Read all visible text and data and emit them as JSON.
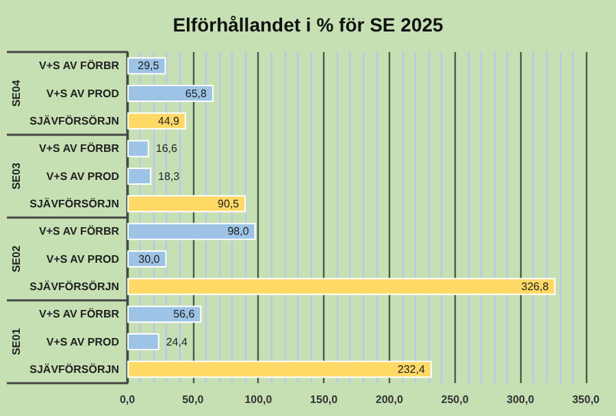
{
  "chart_data": {
    "type": "bar",
    "orientation": "horizontal",
    "title": "Elförhållandet i % för SE 2025",
    "categories": [
      "V+S AV FÖRBR",
      "V+S AV PROD",
      "SJÄVFÖRSÖRJN",
      "V+S AV FÖRBR",
      "V+S AV PROD",
      "SJÄVFÖRSÖRJN",
      "V+S AV FÖRBR",
      "V+S AV PROD",
      "SJÄVFÖRSÖRJN",
      "V+S AV FÖRBR",
      "V+S AV PROD",
      "SJÄVFÖRSÖRJN"
    ],
    "values": [
      29.5,
      65.8,
      44.9,
      16.6,
      18.3,
      90.5,
      98.0,
      30.0,
      326.8,
      56.6,
      24.4,
      232.4
    ],
    "value_labels": [
      "29,5",
      "65,8",
      "44,9",
      "16,6",
      "18,3",
      "90,5",
      "98,0",
      "30,0",
      "326,8",
      "56,6",
      "24,4",
      "232,4"
    ],
    "colors": [
      "#9dc3e6",
      "#9dc3e6",
      "#ffd966",
      "#9dc3e6",
      "#9dc3e6",
      "#ffd966",
      "#9dc3e6",
      "#9dc3e6",
      "#ffd966",
      "#9dc3e6",
      "#9dc3e6",
      "#ffd966"
    ],
    "annotations": [
      "SE04",
      "SE03",
      "SE02",
      "SE01"
    ],
    "xlim": [
      0,
      350
    ],
    "xticks": [
      {
        "value": 0,
        "label": "0,0"
      },
      {
        "value": 10,
        "label": null
      },
      {
        "value": 20,
        "label": null
      },
      {
        "value": 30,
        "label": null
      },
      {
        "value": 40,
        "label": null
      },
      {
        "value": 50,
        "label": "50,0"
      },
      {
        "value": 60,
        "label": null
      },
      {
        "value": 70,
        "label": null
      },
      {
        "value": 80,
        "label": null
      },
      {
        "value": 90,
        "label": null
      },
      {
        "value": 100,
        "label": "100,0"
      },
      {
        "value": 110,
        "label": null
      },
      {
        "value": 120,
        "label": null
      },
      {
        "value": 130,
        "label": null
      },
      {
        "value": 140,
        "label": null
      },
      {
        "value": 150,
        "label": "150,0"
      },
      {
        "value": 160,
        "label": null
      },
      {
        "value": 170,
        "label": null
      },
      {
        "value": 180,
        "label": null
      },
      {
        "value": 190,
        "label": null
      },
      {
        "value": 200,
        "label": "200,0"
      },
      {
        "value": 210,
        "label": null
      },
      {
        "value": 220,
        "label": null
      },
      {
        "value": 230,
        "label": null
      },
      {
        "value": 240,
        "label": null
      },
      {
        "value": 250,
        "label": "250,0"
      },
      {
        "value": 260,
        "label": null
      },
      {
        "value": 270,
        "label": null
      },
      {
        "value": 280,
        "label": null
      },
      {
        "value": 290,
        "label": null
      },
      {
        "value": 300,
        "label": "300,0"
      },
      {
        "value": 310,
        "label": null
      },
      {
        "value": 320,
        "label": null
      },
      {
        "value": 330,
        "label": null
      },
      {
        "value": 340,
        "label": null
      },
      {
        "value": 350,
        "label": "350,0"
      }
    ],
    "grid": "x"
  }
}
